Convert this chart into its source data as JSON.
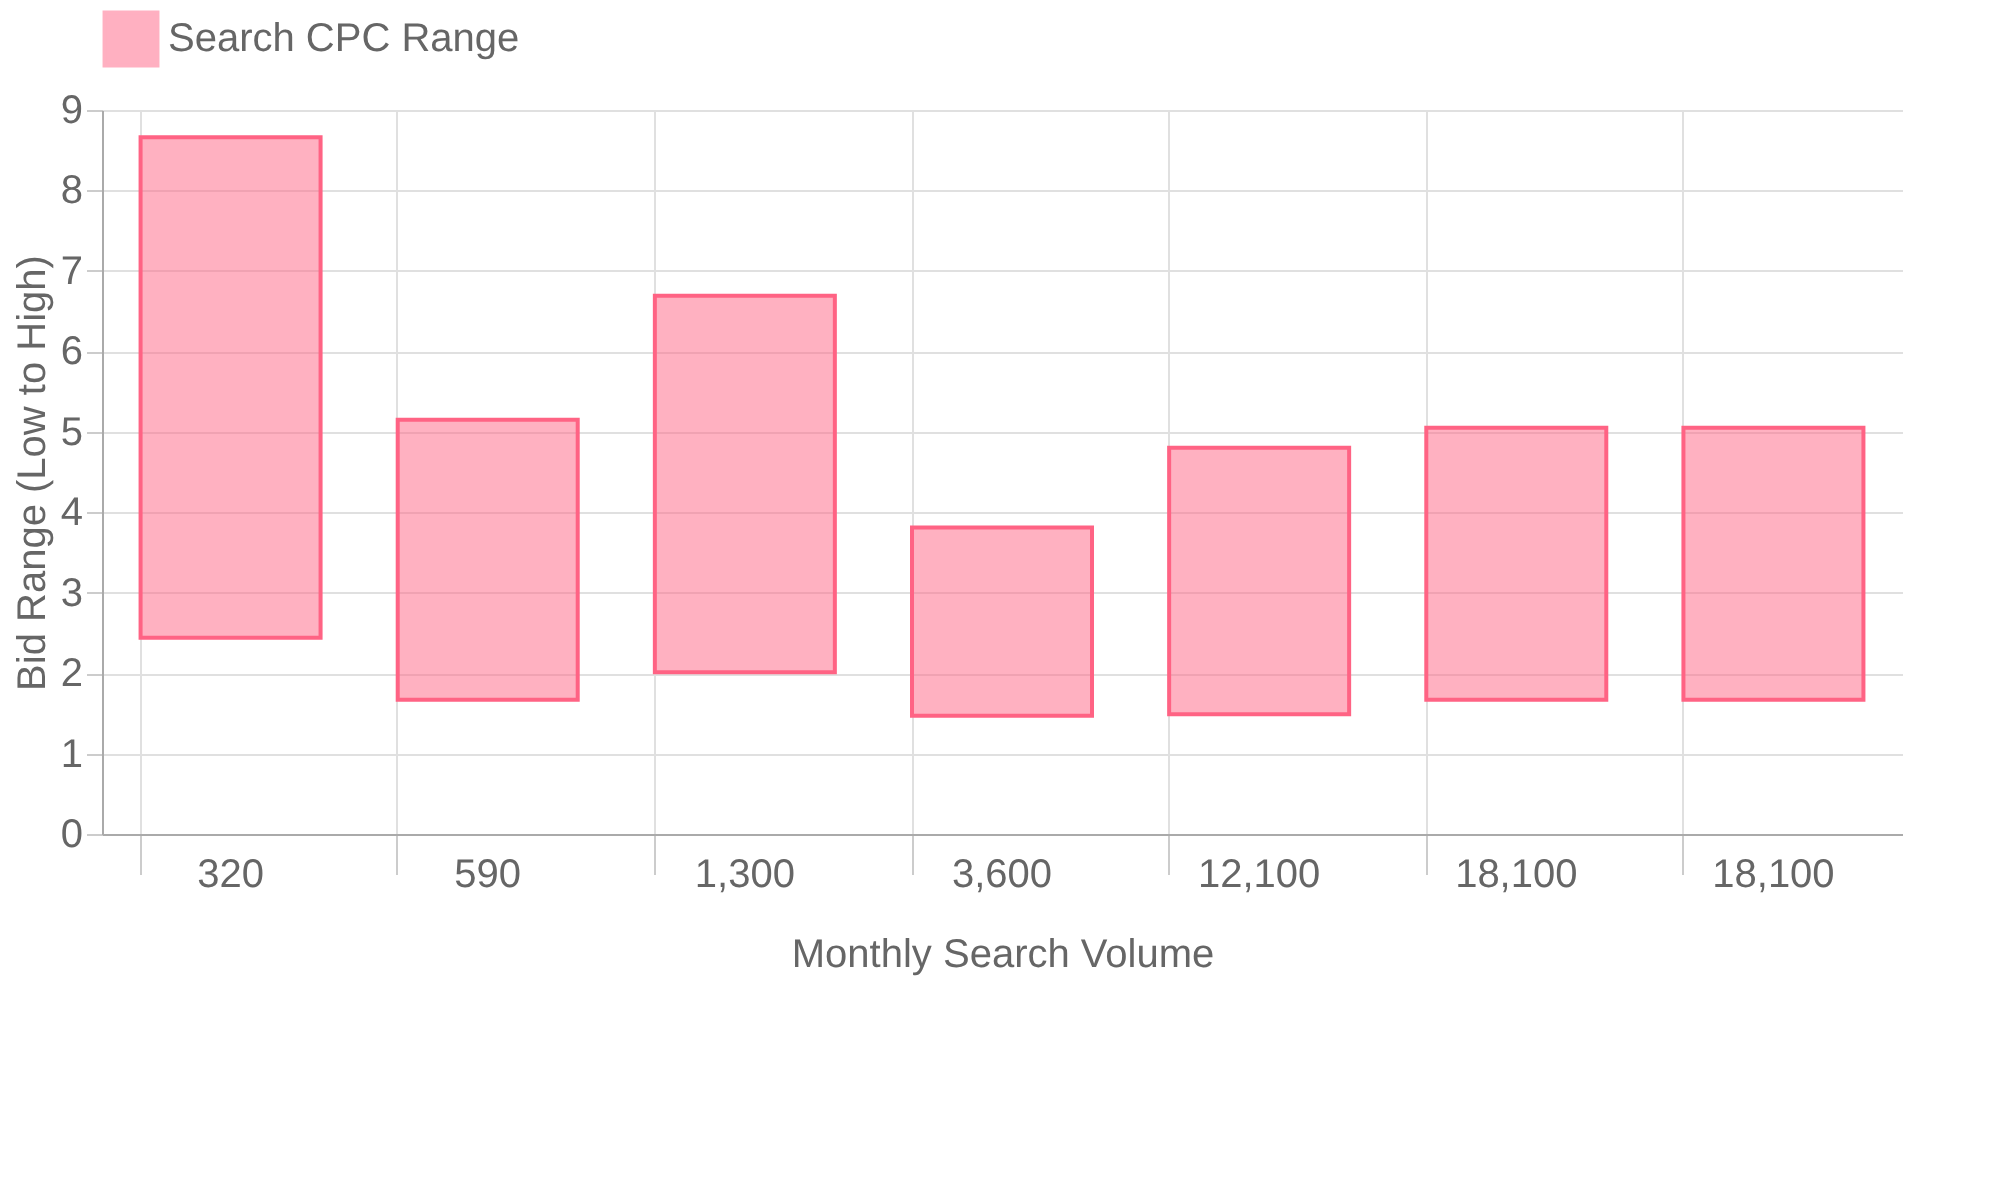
{
  "chart_data": {
    "type": "bar",
    "xlabel": "Monthly Search Volume",
    "ylabel": "Bid Range (Low to High)",
    "categories": [
      "320",
      "590",
      "1,300",
      "3,600",
      "12,100",
      "18,100",
      "18,100"
    ],
    "series": [
      {
        "name": "Search CPC Range",
        "color": "#ff6384",
        "values": [
          6.22,
          3.48,
          4.68,
          2.34,
          3.31,
          3.38,
          3.38
        ],
        "base": [
          2.44,
          1.67,
          2.01,
          1.47,
          1.49,
          1.67,
          1.67
        ]
      }
    ],
    "ylim": [
      0,
      9
    ],
    "yticks": [
      0,
      1,
      2,
      3,
      4,
      5,
      6,
      7,
      8,
      9
    ],
    "grid": true,
    "legend": "top"
  }
}
